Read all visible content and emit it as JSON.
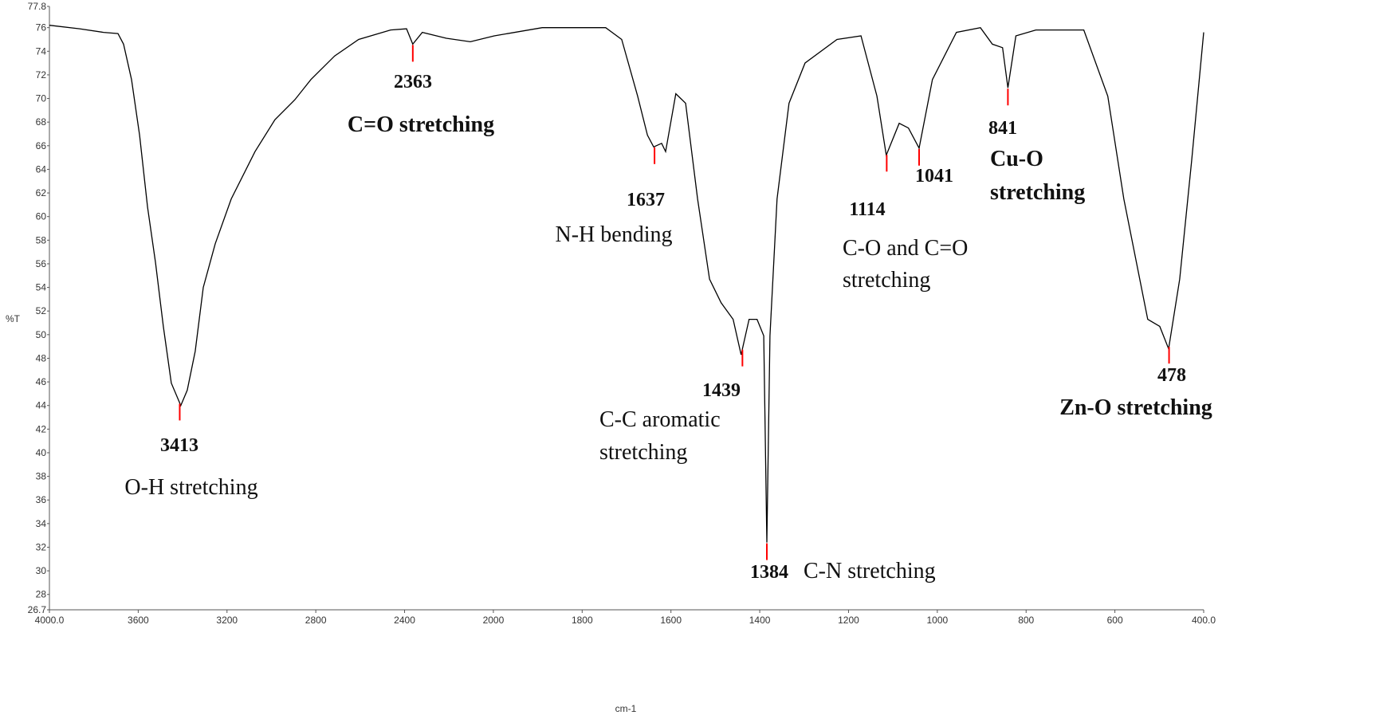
{
  "chart_data": {
    "type": "line",
    "x_label": "cm-1",
    "y_label": "%T",
    "xlim": [
      4000,
      400
    ],
    "ylim": [
      26.7,
      77.8
    ],
    "x_half_scale_above": 2000,
    "xticks": [
      {
        "value": 4000,
        "label": "4000.0"
      },
      3600,
      3200,
      2800,
      2400,
      2000,
      1800,
      1600,
      1400,
      1200,
      1000,
      800,
      600,
      {
        "value": 400,
        "label": "400.0"
      }
    ],
    "yticks": [
      26.7,
      28,
      30,
      32,
      34,
      36,
      38,
      40,
      42,
      44,
      46,
      48,
      50,
      52,
      54,
      56,
      58,
      60,
      62,
      64,
      66,
      68,
      70,
      72,
      74,
      76,
      77.8
    ],
    "series": [
      {
        "color": "#000000",
        "x": [
          4000,
          3864,
          3756,
          3691,
          3666,
          3630,
          3594,
          3558,
          3522,
          3487,
          3451,
          3408,
          3379,
          3343,
          3307,
          3253,
          3181,
          3074,
          2984,
          2894,
          2822,
          2715,
          2607,
          2463,
          2391,
          2363,
          2320,
          2212,
          2104,
          1998,
          1890,
          1747,
          1711,
          1675,
          1653,
          1639,
          1621,
          1612,
          1589,
          1567,
          1540,
          1513,
          1487,
          1460,
          1442,
          1424,
          1406,
          1391,
          1384,
          1377,
          1361,
          1334,
          1298,
          1226,
          1172,
          1136,
          1115,
          1086,
          1065,
          1041,
          1011,
          957,
          903,
          876,
          853,
          841,
          823,
          778,
          670,
          616,
          580,
          526,
          499,
          479,
          454,
          427,
          400
        ],
        "values": [
          76.2,
          75.9,
          75.6,
          75.5,
          74.6,
          71.6,
          66.9,
          60.8,
          56.1,
          50.7,
          45.9,
          44.0,
          45.3,
          48.6,
          54.0,
          57.7,
          61.5,
          65.5,
          68.2,
          69.9,
          71.6,
          73.6,
          75.0,
          75.8,
          75.9,
          74.6,
          75.6,
          75.1,
          74.8,
          75.3,
          76.0,
          76.0,
          75.0,
          70.2,
          66.9,
          65.9,
          66.2,
          65.5,
          70.4,
          69.6,
          61.5,
          54.7,
          52.7,
          51.3,
          48.3,
          51.3,
          51.3,
          49.9,
          32.4,
          49.9,
          61.5,
          69.6,
          73.0,
          75.0,
          75.3,
          70.2,
          65.2,
          67.9,
          67.5,
          65.8,
          71.6,
          75.6,
          76.0,
          74.6,
          74.3,
          70.9,
          75.3,
          75.8,
          75.8,
          70.2,
          61.5,
          51.3,
          50.7,
          48.8,
          54.7,
          64.8,
          75.6
        ]
      }
    ],
    "peaks": [
      {
        "x": 3413,
        "text": [
          "O-H stretching"
        ]
      },
      {
        "x": 2363,
        "text": [
          "C=O stretching"
        ]
      },
      {
        "x": 1637,
        "text": [
          "N-H bending"
        ]
      },
      {
        "x": 1439,
        "text": [
          "C-C aromatic",
          "stretching"
        ]
      },
      {
        "x": 1384,
        "text": [
          "C-N stretching"
        ]
      },
      {
        "x": 1114,
        "text": [
          "C-O and C=O",
          "stretching"
        ]
      },
      {
        "x": 1041,
        "text": []
      },
      {
        "x": 841,
        "text": [
          "Cu-O",
          "stretching"
        ]
      },
      {
        "x": 478,
        "text": [
          "Zn-O stretching"
        ]
      }
    ],
    "peak_marker_color": "#ff0000"
  }
}
